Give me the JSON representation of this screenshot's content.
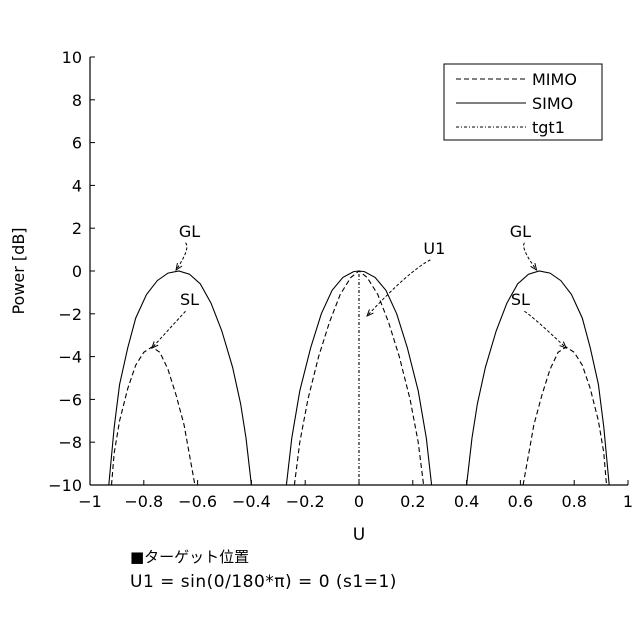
{
  "chart_data": {
    "type": "line",
    "title": "",
    "xlabel": "U",
    "ylabel": "Power [dB]",
    "xlim": [
      -1,
      1
    ],
    "ylim": [
      -10,
      10
    ],
    "xticks": [
      -1,
      -0.8,
      -0.6,
      -0.4,
      -0.2,
      0,
      0.2,
      0.4,
      0.6,
      0.8,
      1
    ],
    "xtick_labels": [
      "−1",
      "−0.8",
      "−0.6",
      "−0.4",
      "−0.2",
      "0",
      "0.2",
      "0.4",
      "0.6",
      "0.8",
      "1"
    ],
    "yticks": [
      -10,
      -8,
      -6,
      -4,
      -2,
      0,
      2,
      4,
      6,
      8,
      10
    ],
    "ytick_labels": [
      "−10",
      "−8",
      "−6",
      "−4",
      "−2",
      "0",
      "2",
      "4",
      "6",
      "8",
      "10"
    ],
    "grid": false,
    "legend_position": "top-right",
    "series": [
      {
        "name": "MIMO",
        "style": "dashed",
        "segments": [
          [
            [
              -0.92,
              -10
            ],
            [
              -0.91,
              -8.5
            ],
            [
              -0.89,
              -7
            ],
            [
              -0.86,
              -5.5
            ],
            [
              -0.83,
              -4.4
            ],
            [
              -0.8,
              -3.8
            ],
            [
              -0.77,
              -3.55
            ],
            [
              -0.74,
              -3.8
            ],
            [
              -0.71,
              -4.6
            ],
            [
              -0.68,
              -5.8
            ],
            [
              -0.65,
              -7.2
            ],
            [
              -0.63,
              -8.6
            ],
            [
              -0.61,
              -10
            ]
          ],
          [
            [
              -0.24,
              -10
            ],
            [
              -0.22,
              -8
            ],
            [
              -0.19,
              -6
            ],
            [
              -0.15,
              -4
            ],
            [
              -0.11,
              -2.4
            ],
            [
              -0.07,
              -1.1
            ],
            [
              -0.03,
              -0.3
            ],
            [
              0,
              0
            ],
            [
              0.03,
              -0.3
            ],
            [
              0.07,
              -1.1
            ],
            [
              0.11,
              -2.4
            ],
            [
              0.15,
              -4
            ],
            [
              0.19,
              -6
            ],
            [
              0.22,
              -8
            ],
            [
              0.24,
              -10
            ]
          ],
          [
            [
              0.61,
              -10
            ],
            [
              0.63,
              -8.6
            ],
            [
              0.65,
              -7.2
            ],
            [
              0.68,
              -5.8
            ],
            [
              0.71,
              -4.6
            ],
            [
              0.74,
              -3.8
            ],
            [
              0.77,
              -3.55
            ],
            [
              0.8,
              -3.8
            ],
            [
              0.83,
              -4.4
            ],
            [
              0.86,
              -5.5
            ],
            [
              0.89,
              -7
            ],
            [
              0.91,
              -8.5
            ],
            [
              0.92,
              -10
            ]
          ]
        ]
      },
      {
        "name": "SIMO",
        "style": "solid",
        "segments": [
          [
            [
              -0.93,
              -10
            ],
            [
              -0.91,
              -7.3
            ],
            [
              -0.89,
              -5.3
            ],
            [
              -0.86,
              -3.6
            ],
            [
              -0.83,
              -2.2
            ],
            [
              -0.79,
              -1.1
            ],
            [
              -0.75,
              -0.45
            ],
            [
              -0.71,
              -0.1
            ],
            [
              -0.67,
              0
            ],
            [
              -0.63,
              -0.15
            ],
            [
              -0.59,
              -0.6
            ],
            [
              -0.55,
              -1.5
            ],
            [
              -0.51,
              -2.8
            ],
            [
              -0.47,
              -4.5
            ],
            [
              -0.44,
              -6.2
            ],
            [
              -0.42,
              -7.8
            ],
            [
              -0.4,
              -10
            ]
          ],
          [
            [
              -0.27,
              -10
            ],
            [
              -0.25,
              -7.8
            ],
            [
              -0.22,
              -5.6
            ],
            [
              -0.18,
              -3.6
            ],
            [
              -0.14,
              -2
            ],
            [
              -0.1,
              -0.9
            ],
            [
              -0.06,
              -0.3
            ],
            [
              -0.02,
              -0.03
            ],
            [
              0,
              0
            ],
            [
              0.02,
              -0.03
            ],
            [
              0.06,
              -0.3
            ],
            [
              0.1,
              -0.9
            ],
            [
              0.14,
              -2
            ],
            [
              0.18,
              -3.6
            ],
            [
              0.22,
              -5.6
            ],
            [
              0.25,
              -7.8
            ],
            [
              0.27,
              -10
            ]
          ],
          [
            [
              0.4,
              -10
            ],
            [
              0.42,
              -7.8
            ],
            [
              0.44,
              -6.2
            ],
            [
              0.47,
              -4.5
            ],
            [
              0.51,
              -2.8
            ],
            [
              0.55,
              -1.5
            ],
            [
              0.59,
              -0.6
            ],
            [
              0.63,
              -0.15
            ],
            [
              0.67,
              0
            ],
            [
              0.71,
              -0.1
            ],
            [
              0.75,
              -0.45
            ],
            [
              0.79,
              -1.1
            ],
            [
              0.83,
              -2.2
            ],
            [
              0.86,
              -3.6
            ],
            [
              0.89,
              -5.3
            ],
            [
              0.91,
              -7.3
            ],
            [
              0.93,
              -10
            ]
          ]
        ]
      },
      {
        "name": "tgt1",
        "style": "dash-dot",
        "segments": [
          [
            [
              0,
              -10
            ],
            [
              0,
              0
            ]
          ]
        ]
      }
    ],
    "annotations": [
      {
        "text": "GL",
        "x": -0.63,
        "y": 1.6,
        "tx": -0.68,
        "ty": 0.05
      },
      {
        "text": "SL",
        "x": -0.63,
        "y": -1.6,
        "tx": -0.77,
        "ty": -3.6
      },
      {
        "text": "U1",
        "x": 0.28,
        "y": 0.8,
        "tx": 0.03,
        "ty": -2.1
      },
      {
        "text": "GL",
        "x": 0.6,
        "y": 1.6,
        "tx": 0.66,
        "ty": 0.05
      },
      {
        "text": "SL",
        "x": 0.6,
        "y": -1.6,
        "tx": 0.77,
        "ty": -3.6
      }
    ]
  },
  "footnote": {
    "title": "■ターゲット位置",
    "equation": "U1 = sin(0/180*π) = 0 (s1=1)"
  }
}
